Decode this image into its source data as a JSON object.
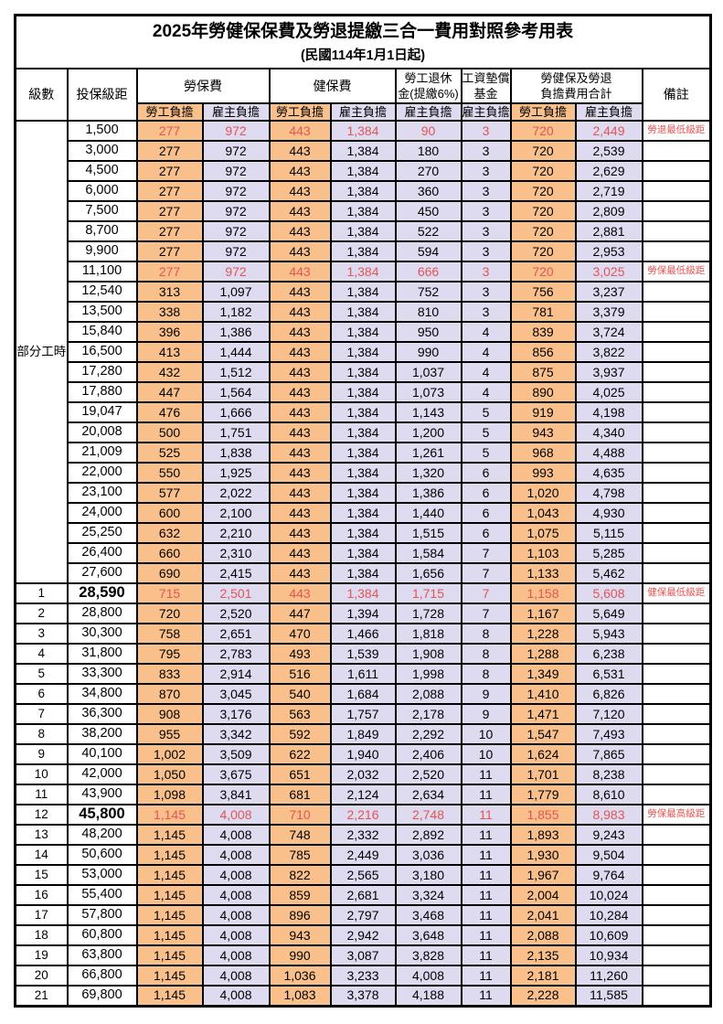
{
  "title": "2025年勞健保保費及勞退提繳三合一費用對照參考用表",
  "subtitle": "(民國114年1月1日起)",
  "colors": {
    "employee_fill": "#F9C08C",
    "employer_fill": "#DEDAEF",
    "highlight_text": "#E25555",
    "border": "#000000"
  },
  "table": {
    "headers": {
      "level": "級數",
      "bracket": "投保級距",
      "labor_insurance": "勞保費",
      "health_insurance": "健保費",
      "pension_line1": "勞工退休",
      "pension_line2": "金(提繳6%)",
      "wage_fund_line1": "工資墊償",
      "wage_fund_line2": "基金",
      "total_line1": "勞健保及勞退",
      "total_line2": "負擔費用合計",
      "remarks": "備註",
      "employee": "勞工負擔",
      "employer": "雇主負擔"
    },
    "part_time_label": "部分工時",
    "rows": [
      {
        "level": "",
        "bracket": "1,500",
        "values": [
          "277",
          "972",
          "443",
          "1,384",
          "90",
          "3",
          "720",
          "2,449"
        ],
        "remark": "勞退最低級距",
        "highlight": true,
        "bold_bracket": false
      },
      {
        "level": "",
        "bracket": "3,000",
        "values": [
          "277",
          "972",
          "443",
          "1,384",
          "180",
          "3",
          "720",
          "2,539"
        ],
        "remark": "",
        "highlight": false,
        "bold_bracket": false
      },
      {
        "level": "",
        "bracket": "4,500",
        "values": [
          "277",
          "972",
          "443",
          "1,384",
          "270",
          "3",
          "720",
          "2,629"
        ],
        "remark": "",
        "highlight": false,
        "bold_bracket": false
      },
      {
        "level": "",
        "bracket": "6,000",
        "values": [
          "277",
          "972",
          "443",
          "1,384",
          "360",
          "3",
          "720",
          "2,719"
        ],
        "remark": "",
        "highlight": false,
        "bold_bracket": false
      },
      {
        "level": "",
        "bracket": "7,500",
        "values": [
          "277",
          "972",
          "443",
          "1,384",
          "450",
          "3",
          "720",
          "2,809"
        ],
        "remark": "",
        "highlight": false,
        "bold_bracket": false
      },
      {
        "level": "",
        "bracket": "8,700",
        "values": [
          "277",
          "972",
          "443",
          "1,384",
          "522",
          "3",
          "720",
          "2,881"
        ],
        "remark": "",
        "highlight": false,
        "bold_bracket": false
      },
      {
        "level": "",
        "bracket": "9,900",
        "values": [
          "277",
          "972",
          "443",
          "1,384",
          "594",
          "3",
          "720",
          "2,953"
        ],
        "remark": "",
        "highlight": false,
        "bold_bracket": false
      },
      {
        "level": "",
        "bracket": "11,100",
        "values": [
          "277",
          "972",
          "443",
          "1,384",
          "666",
          "3",
          "720",
          "3,025"
        ],
        "remark": "勞保最低級距",
        "highlight": true,
        "bold_bracket": false
      },
      {
        "level": "",
        "bracket": "12,540",
        "values": [
          "313",
          "1,097",
          "443",
          "1,384",
          "752",
          "3",
          "756",
          "3,237"
        ],
        "remark": "",
        "highlight": false,
        "bold_bracket": false
      },
      {
        "level": "",
        "bracket": "13,500",
        "values": [
          "338",
          "1,182",
          "443",
          "1,384",
          "810",
          "3",
          "781",
          "3,379"
        ],
        "remark": "",
        "highlight": false,
        "bold_bracket": false
      },
      {
        "level": "",
        "bracket": "15,840",
        "values": [
          "396",
          "1,386",
          "443",
          "1,384",
          "950",
          "4",
          "839",
          "3,724"
        ],
        "remark": "",
        "highlight": false,
        "bold_bracket": false
      },
      {
        "level": "",
        "bracket": "16,500",
        "values": [
          "413",
          "1,444",
          "443",
          "1,384",
          "990",
          "4",
          "856",
          "3,822"
        ],
        "remark": "",
        "highlight": false,
        "bold_bracket": false
      },
      {
        "level": "",
        "bracket": "17,280",
        "values": [
          "432",
          "1,512",
          "443",
          "1,384",
          "1,037",
          "4",
          "875",
          "3,937"
        ],
        "remark": "",
        "highlight": false,
        "bold_bracket": false
      },
      {
        "level": "",
        "bracket": "17,880",
        "values": [
          "447",
          "1,564",
          "443",
          "1,384",
          "1,073",
          "4",
          "890",
          "4,025"
        ],
        "remark": "",
        "highlight": false,
        "bold_bracket": false
      },
      {
        "level": "",
        "bracket": "19,047",
        "values": [
          "476",
          "1,666",
          "443",
          "1,384",
          "1,143",
          "5",
          "919",
          "4,198"
        ],
        "remark": "",
        "highlight": false,
        "bold_bracket": false
      },
      {
        "level": "",
        "bracket": "20,008",
        "values": [
          "500",
          "1,751",
          "443",
          "1,384",
          "1,200",
          "5",
          "943",
          "4,340"
        ],
        "remark": "",
        "highlight": false,
        "bold_bracket": false
      },
      {
        "level": "",
        "bracket": "21,009",
        "values": [
          "525",
          "1,838",
          "443",
          "1,384",
          "1,261",
          "5",
          "968",
          "4,488"
        ],
        "remark": "",
        "highlight": false,
        "bold_bracket": false
      },
      {
        "level": "",
        "bracket": "22,000",
        "values": [
          "550",
          "1,925",
          "443",
          "1,384",
          "1,320",
          "6",
          "993",
          "4,635"
        ],
        "remark": "",
        "highlight": false,
        "bold_bracket": false
      },
      {
        "level": "",
        "bracket": "23,100",
        "values": [
          "577",
          "2,022",
          "443",
          "1,384",
          "1,386",
          "6",
          "1,020",
          "4,798"
        ],
        "remark": "",
        "highlight": false,
        "bold_bracket": false
      },
      {
        "level": "",
        "bracket": "24,000",
        "values": [
          "600",
          "2,100",
          "443",
          "1,384",
          "1,440",
          "6",
          "1,043",
          "4,930"
        ],
        "remark": "",
        "highlight": false,
        "bold_bracket": false
      },
      {
        "level": "",
        "bracket": "25,250",
        "values": [
          "632",
          "2,210",
          "443",
          "1,384",
          "1,515",
          "6",
          "1,075",
          "5,115"
        ],
        "remark": "",
        "highlight": false,
        "bold_bracket": false
      },
      {
        "level": "",
        "bracket": "26,400",
        "values": [
          "660",
          "2,310",
          "443",
          "1,384",
          "1,584",
          "7",
          "1,103",
          "5,285"
        ],
        "remark": "",
        "highlight": false,
        "bold_bracket": false
      },
      {
        "level": "",
        "bracket": "27,600",
        "values": [
          "690",
          "2,415",
          "443",
          "1,384",
          "1,656",
          "7",
          "1,133",
          "5,462"
        ],
        "remark": "",
        "highlight": false,
        "bold_bracket": false
      },
      {
        "level": "1",
        "bracket": "28,590",
        "values": [
          "715",
          "2,501",
          "443",
          "1,384",
          "1,715",
          "7",
          "1,158",
          "5,608"
        ],
        "remark": "健保最低級距",
        "highlight": true,
        "bold_bracket": true
      },
      {
        "level": "2",
        "bracket": "28,800",
        "values": [
          "720",
          "2,520",
          "447",
          "1,394",
          "1,728",
          "7",
          "1,167",
          "5,649"
        ],
        "remark": "",
        "highlight": false,
        "bold_bracket": false
      },
      {
        "level": "3",
        "bracket": "30,300",
        "values": [
          "758",
          "2,651",
          "470",
          "1,466",
          "1,818",
          "8",
          "1,228",
          "5,943"
        ],
        "remark": "",
        "highlight": false,
        "bold_bracket": false
      },
      {
        "level": "4",
        "bracket": "31,800",
        "values": [
          "795",
          "2,783",
          "493",
          "1,539",
          "1,908",
          "8",
          "1,288",
          "6,238"
        ],
        "remark": "",
        "highlight": false,
        "bold_bracket": false
      },
      {
        "level": "5",
        "bracket": "33,300",
        "values": [
          "833",
          "2,914",
          "516",
          "1,611",
          "1,998",
          "8",
          "1,349",
          "6,531"
        ],
        "remark": "",
        "highlight": false,
        "bold_bracket": false
      },
      {
        "level": "6",
        "bracket": "34,800",
        "values": [
          "870",
          "3,045",
          "540",
          "1,684",
          "2,088",
          "9",
          "1,410",
          "6,826"
        ],
        "remark": "",
        "highlight": false,
        "bold_bracket": false
      },
      {
        "level": "7",
        "bracket": "36,300",
        "values": [
          "908",
          "3,176",
          "563",
          "1,757",
          "2,178",
          "9",
          "1,471",
          "7,120"
        ],
        "remark": "",
        "highlight": false,
        "bold_bracket": false
      },
      {
        "level": "8",
        "bracket": "38,200",
        "values": [
          "955",
          "3,342",
          "592",
          "1,849",
          "2,292",
          "10",
          "1,547",
          "7,493"
        ],
        "remark": "",
        "highlight": false,
        "bold_bracket": false
      },
      {
        "level": "9",
        "bracket": "40,100",
        "values": [
          "1,002",
          "3,509",
          "622",
          "1,940",
          "2,406",
          "10",
          "1,624",
          "7,865"
        ],
        "remark": "",
        "highlight": false,
        "bold_bracket": false
      },
      {
        "level": "10",
        "bracket": "42,000",
        "values": [
          "1,050",
          "3,675",
          "651",
          "2,032",
          "2,520",
          "11",
          "1,701",
          "8,238"
        ],
        "remark": "",
        "highlight": false,
        "bold_bracket": false
      },
      {
        "level": "11",
        "bracket": "43,900",
        "values": [
          "1,098",
          "3,841",
          "681",
          "2,124",
          "2,634",
          "11",
          "1,779",
          "8,610"
        ],
        "remark": "",
        "highlight": false,
        "bold_bracket": false
      },
      {
        "level": "12",
        "bracket": "45,800",
        "values": [
          "1,145",
          "4,008",
          "710",
          "2,216",
          "2,748",
          "11",
          "1,855",
          "8,983"
        ],
        "remark": "勞保最高級距",
        "highlight": true,
        "bold_bracket": true
      },
      {
        "level": "13",
        "bracket": "48,200",
        "values": [
          "1,145",
          "4,008",
          "748",
          "2,332",
          "2,892",
          "11",
          "1,893",
          "9,243"
        ],
        "remark": "",
        "highlight": false,
        "bold_bracket": false
      },
      {
        "level": "14",
        "bracket": "50,600",
        "values": [
          "1,145",
          "4,008",
          "785",
          "2,449",
          "3,036",
          "11",
          "1,930",
          "9,504"
        ],
        "remark": "",
        "highlight": false,
        "bold_bracket": false
      },
      {
        "level": "15",
        "bracket": "53,000",
        "values": [
          "1,145",
          "4,008",
          "822",
          "2,565",
          "3,180",
          "11",
          "1,967",
          "9,764"
        ],
        "remark": "",
        "highlight": false,
        "bold_bracket": false
      },
      {
        "level": "16",
        "bracket": "55,400",
        "values": [
          "1,145",
          "4,008",
          "859",
          "2,681",
          "3,324",
          "11",
          "2,004",
          "10,024"
        ],
        "remark": "",
        "highlight": false,
        "bold_bracket": false
      },
      {
        "level": "17",
        "bracket": "57,800",
        "values": [
          "1,145",
          "4,008",
          "896",
          "2,797",
          "3,468",
          "11",
          "2,041",
          "10,284"
        ],
        "remark": "",
        "highlight": false,
        "bold_bracket": false
      },
      {
        "level": "18",
        "bracket": "60,800",
        "values": [
          "1,145",
          "4,008",
          "943",
          "2,942",
          "3,648",
          "11",
          "2,088",
          "10,609"
        ],
        "remark": "",
        "highlight": false,
        "bold_bracket": false
      },
      {
        "level": "19",
        "bracket": "63,800",
        "values": [
          "1,145",
          "4,008",
          "990",
          "3,087",
          "3,828",
          "11",
          "2,135",
          "10,934"
        ],
        "remark": "",
        "highlight": false,
        "bold_bracket": false
      },
      {
        "level": "20",
        "bracket": "66,800",
        "values": [
          "1,145",
          "4,008",
          "1,036",
          "3,233",
          "4,008",
          "11",
          "2,181",
          "11,260"
        ],
        "remark": "",
        "highlight": false,
        "bold_bracket": false
      },
      {
        "level": "21",
        "bracket": "69,800",
        "values": [
          "1,145",
          "4,008",
          "1,083",
          "3,378",
          "4,188",
          "11",
          "2,228",
          "11,585"
        ],
        "remark": "",
        "highlight": false,
        "bold_bracket": false
      }
    ]
  }
}
